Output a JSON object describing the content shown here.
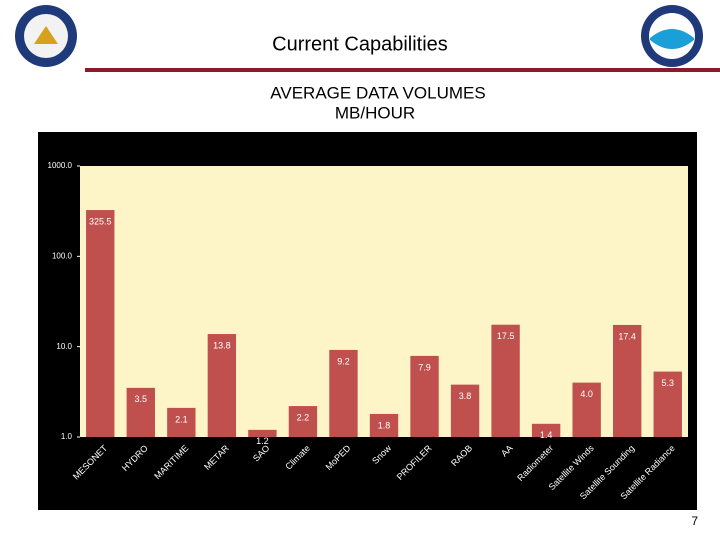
{
  "header": {
    "title": "Current Capabilities"
  },
  "page_number": "7",
  "chart_data": {
    "type": "bar",
    "title": "AVERAGE DATA VOLUMES",
    "subtitle": "MB/HOUR",
    "categories": [
      "MESONET",
      "HYDRO",
      "MARITIME",
      "METAR",
      "SAO",
      "Climate",
      "MoPED",
      "Snow",
      "PROFILER",
      "RAOB",
      "AA",
      "Radiometer",
      "Satellite Winds",
      "Satellite Sounding",
      "Satellite Radiance"
    ],
    "values": [
      325.5,
      3.5,
      2.1,
      13.8,
      1.2,
      2.2,
      9.2,
      1.8,
      7.9,
      3.8,
      17.5,
      1.4,
      4.0,
      17.4,
      5.3
    ],
    "value_labels": [
      "325.5",
      "3.5",
      "2.1",
      "13.8",
      "1.2",
      "2.2",
      "9.2",
      "1.8",
      "7.9",
      "3.8",
      "17.5",
      "1.4",
      "4.0",
      "17.4",
      "5.3"
    ],
    "color": "#c0504d",
    "log_scale": true,
    "ylim": [
      1,
      1000
    ],
    "yticks": [
      {
        "value": 1,
        "label": "1.0"
      },
      {
        "value": 10,
        "label": "10.0"
      },
      {
        "value": 100,
        "label": "100.0"
      },
      {
        "value": 1000,
        "label": "1000.0"
      }
    ]
  }
}
